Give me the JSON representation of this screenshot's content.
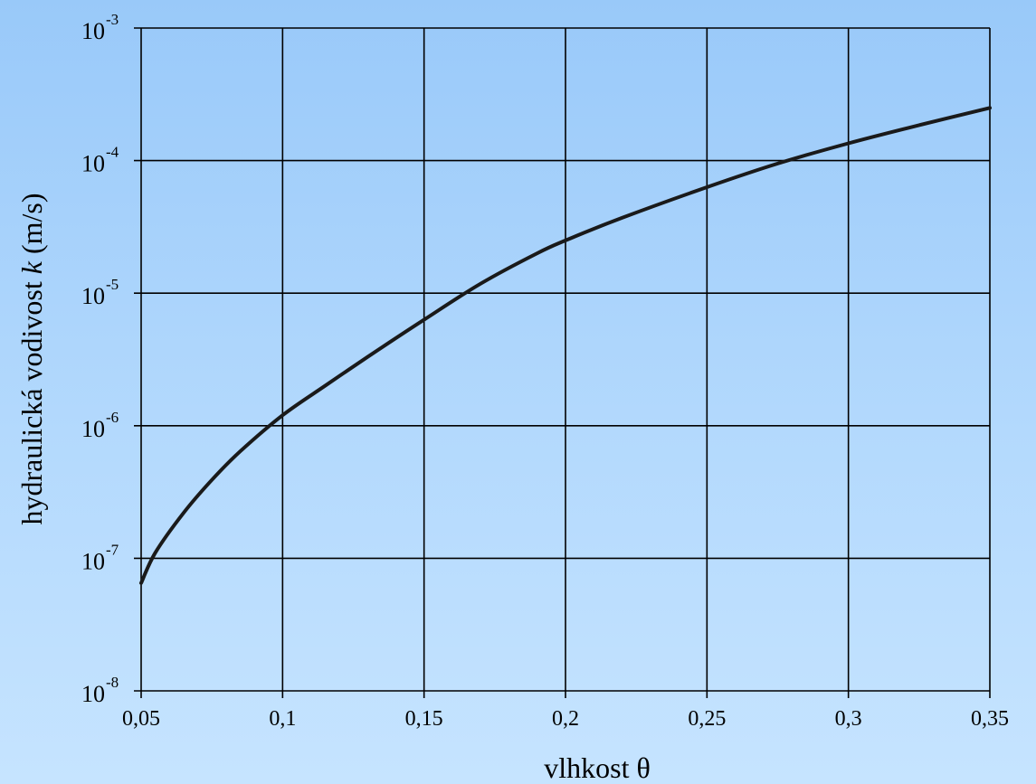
{
  "chart_data": {
    "type": "line",
    "title": "",
    "xlabel": "vlhkost θ",
    "ylabel_prefix": "hydraulická vodivost ",
    "ylabel_var": "k",
    "ylabel_suffix": " (m/s)",
    "y_scale": "log",
    "xlim": [
      0.05,
      0.35
    ],
    "ylim": [
      1e-08,
      0.001
    ],
    "grid": true,
    "x_ticks": [
      {
        "value": 0.05,
        "label": "0,05"
      },
      {
        "value": 0.1,
        "label": "0,1"
      },
      {
        "value": 0.15,
        "label": "0,15"
      },
      {
        "value": 0.2,
        "label": "0,2"
      },
      {
        "value": 0.25,
        "label": "0,25"
      },
      {
        "value": 0.3,
        "label": "0,3"
      },
      {
        "value": 0.35,
        "label": "0,35"
      }
    ],
    "y_ticks": [
      {
        "value": 0.001,
        "base": "10",
        "exp": "-3"
      },
      {
        "value": 0.0001,
        "base": "10",
        "exp": "-4"
      },
      {
        "value": 1e-05,
        "base": "10",
        "exp": "-5"
      },
      {
        "value": 1e-06,
        "base": "10",
        "exp": "-6"
      },
      {
        "value": 1e-07,
        "base": "10",
        "exp": "-7"
      },
      {
        "value": 1e-08,
        "base": "10",
        "exp": "-8"
      }
    ],
    "series": [
      {
        "color": "#1a1a1a",
        "x": [
          0.05,
          0.055,
          0.065,
          0.075,
          0.085,
          0.1,
          0.115,
          0.13,
          0.15,
          0.17,
          0.19,
          0.2,
          0.22,
          0.25,
          0.275,
          0.3,
          0.325,
          0.35
        ],
        "y": [
          6.5e-08,
          1.1e-07,
          2.2e-07,
          3.9e-07,
          6.4e-07,
          1.2e-06,
          2e-06,
          3.3e-06,
          6.3e-06,
          1.18e-05,
          2e-05,
          2.5e-05,
          3.7e-05,
          6.3e-05,
          9.5e-05,
          0.000135,
          0.000185,
          0.00025
        ]
      }
    ]
  }
}
